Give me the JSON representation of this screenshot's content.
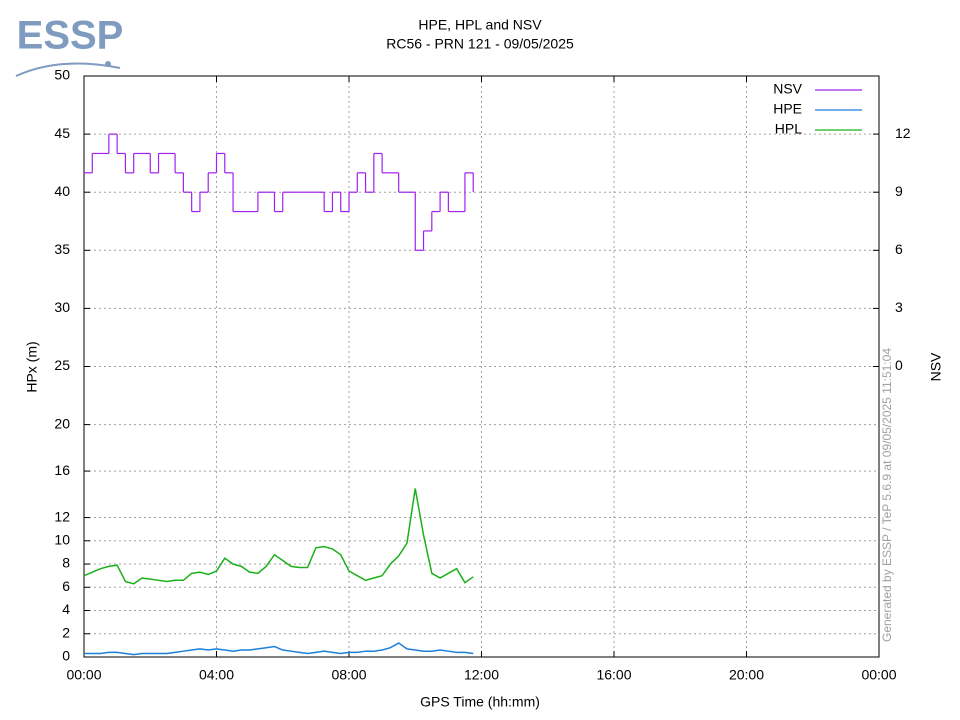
{
  "chart_data": {
    "type": "line",
    "logo": "ESSP",
    "title": "HPE, HPL and NSV",
    "subtitle": "RC56 - PRN 121 - 09/05/2025",
    "xlabel": "GPS Time (hh:mm)",
    "ylabel": "HPx (m)",
    "y2label": "NSV",
    "watermark": "Generated by ESSP / TeP 5.6.9 at 09/05/2025 11:51:04",
    "xlim": [
      0,
      24
    ],
    "xticks": [
      {
        "value": 0,
        "label": "00:00"
      },
      {
        "value": 4,
        "label": "04:00"
      },
      {
        "value": 8,
        "label": "08:00"
      },
      {
        "value": 12,
        "label": "12:00"
      },
      {
        "value": 16,
        "label": "16:00"
      },
      {
        "value": 20,
        "label": "20:00"
      },
      {
        "value": 24,
        "label": "00:00"
      }
    ],
    "ylim": [
      0,
      50
    ],
    "yticks": [
      0,
      2,
      4,
      6,
      8,
      10,
      12,
      16,
      20,
      25,
      30,
      35,
      40,
      45,
      50
    ],
    "y2lim": [
      -15,
      15
    ],
    "y2ticks": [
      0,
      3,
      6,
      9,
      12
    ],
    "grid": true,
    "legend": "top-right",
    "x": [
      0,
      0.25,
      0.5,
      0.75,
      1,
      1.25,
      1.5,
      1.75,
      2,
      2.25,
      2.5,
      2.75,
      3,
      3.25,
      3.5,
      3.75,
      4,
      4.25,
      4.5,
      4.75,
      5,
      5.25,
      5.5,
      5.75,
      6,
      6.25,
      6.5,
      6.75,
      7,
      7.25,
      7.5,
      7.75,
      8,
      8.25,
      8.5,
      8.75,
      9,
      9.25,
      9.5,
      9.75,
      10,
      10.25,
      10.5,
      10.75,
      11,
      11.25,
      11.5,
      11.75
    ],
    "series": [
      {
        "name": "NSV",
        "color": "#a020f0",
        "axis": "y2",
        "step": true,
        "values": [
          10,
          11,
          11,
          12,
          11,
          10,
          11,
          11,
          10,
          11,
          11,
          10,
          9,
          8,
          9,
          10,
          11,
          10,
          8,
          8,
          8,
          9,
          9,
          8,
          9,
          9,
          9,
          9,
          9,
          8,
          9,
          8,
          9,
          10,
          9,
          11,
          10,
          10,
          9,
          9,
          6,
          7,
          8,
          9,
          8,
          8,
          10,
          9
        ]
      },
      {
        "name": "HPE",
        "color": "#1e7fd8",
        "values": [
          0.3,
          0.3,
          0.3,
          0.4,
          0.4,
          0.3,
          0.2,
          0.3,
          0.3,
          0.3,
          0.3,
          0.4,
          0.5,
          0.6,
          0.7,
          0.6,
          0.7,
          0.6,
          0.5,
          0.6,
          0.6,
          0.7,
          0.8,
          0.9,
          0.6,
          0.5,
          0.4,
          0.3,
          0.4,
          0.5,
          0.4,
          0.3,
          0.4,
          0.4,
          0.5,
          0.5,
          0.6,
          0.8,
          1.2,
          0.7,
          0.6,
          0.5,
          0.5,
          0.6,
          0.5,
          0.4,
          0.4,
          0.3
        ]
      },
      {
        "name": "HPL",
        "color": "#1ab01a",
        "values": [
          7,
          7.3,
          7.6,
          7.8,
          7.9,
          6.5,
          6.3,
          6.8,
          6.7,
          6.6,
          6.5,
          6.6,
          6.6,
          7.2,
          7.3,
          7.1,
          7.4,
          8.5,
          8,
          7.8,
          7.3,
          7.2,
          7.8,
          8.8,
          8.3,
          7.8,
          7.7,
          7.7,
          9.4,
          9.5,
          9.3,
          8.8,
          7.4,
          7,
          6.6,
          6.8,
          7,
          8,
          8.7,
          9.8,
          14.5,
          10.5,
          7.2,
          6.8,
          7.2,
          7.6,
          6.4,
          6.9
        ]
      }
    ]
  }
}
